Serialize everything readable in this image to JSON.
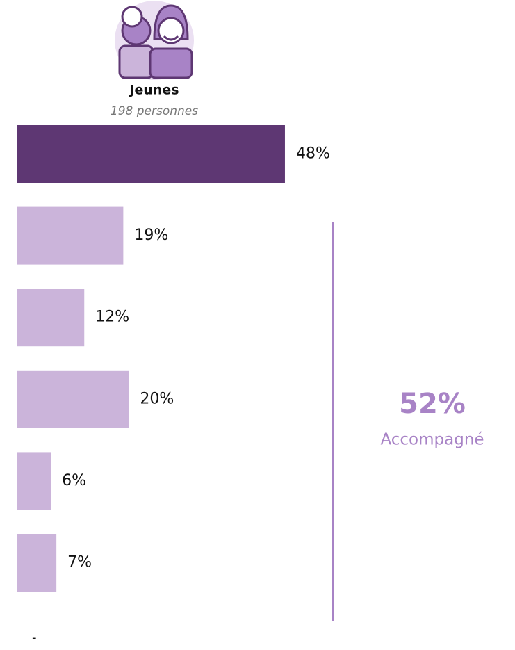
{
  "chart_data": {
    "type": "bar",
    "title": "Jeunes",
    "subtitle": "198 personnes",
    "values": [
      48,
      19,
      12,
      20,
      6,
      7
    ],
    "value_labels": [
      "48%",
      "19%",
      "12%",
      "20%",
      "6%",
      "7%"
    ],
    "colors": [
      "#5e3773",
      "#cbb4da",
      "#cbb4da",
      "#cbb4da",
      "#cbb4da",
      "#cbb4da"
    ],
    "annotation": {
      "value": "52%",
      "text": "Accompagné",
      "color": "#a883c6"
    },
    "footnote": "-"
  }
}
